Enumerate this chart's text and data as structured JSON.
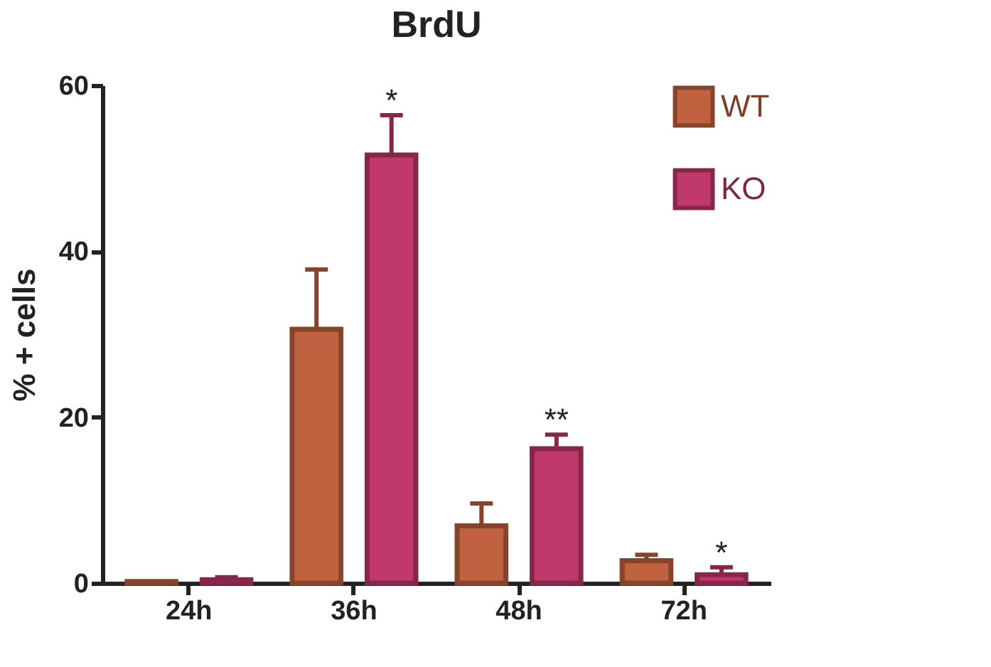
{
  "chart_data": {
    "type": "bar",
    "title": "BrdU",
    "ylabel": "% + cells",
    "categories": [
      "24h",
      "36h",
      "48h",
      "72h"
    ],
    "series": [
      {
        "name": "WT",
        "color": "#c0623f",
        "values": [
          0.2,
          30.6,
          6.9,
          2.7
        ],
        "errors": [
          null,
          [
            30.6,
            37.8
          ],
          [
            6.9,
            9.6
          ],
          [
            2.7,
            3.4
          ]
        ]
      },
      {
        "name": "KO",
        "color": "#c0396a",
        "values": [
          0.4,
          51.6,
          16.2,
          1.0
        ],
        "errors": [
          [
            0.4,
            0.7
          ],
          [
            51.6,
            56.4
          ],
          [
            16.2,
            17.9
          ],
          [
            1.0,
            1.9
          ]
        ],
        "value_labels": [
          null,
          "*",
          "**",
          "*"
        ]
      }
    ],
    "ylim": [
      0,
      60
    ],
    "yticks": [
      0,
      20,
      40,
      60
    ],
    "grid": false,
    "legend": "top right"
  }
}
